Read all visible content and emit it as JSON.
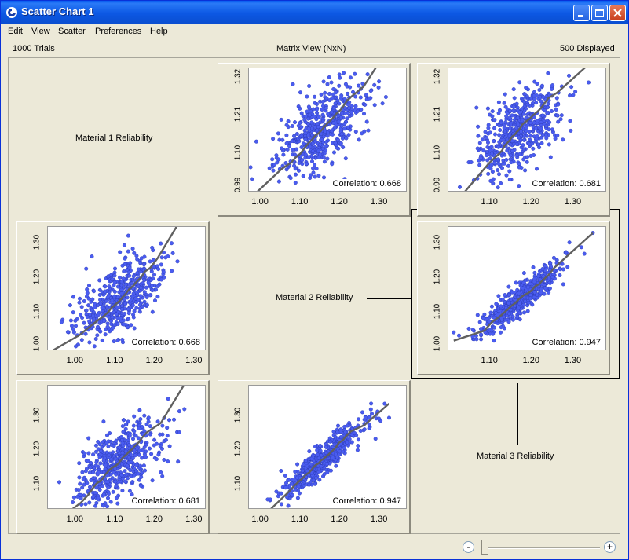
{
  "window": {
    "title": "Scatter Chart 1"
  },
  "menu": [
    "Edit",
    "View",
    "Scatter",
    "Preferences",
    "Help"
  ],
  "info": {
    "trials": "1000 Trials",
    "view": "Matrix View (NxN)",
    "displayed": "500 Displayed"
  },
  "labels": [
    "Material 1 Reliability",
    "Material 2 Reliability",
    "Material 3 Reliability"
  ],
  "colors": {
    "points": "#4a5cf0",
    "fit_line": "#606060",
    "title_bar": "#0a5df0"
  },
  "zoom": {
    "minus": "-",
    "plus": "+",
    "level": 0
  },
  "chart_data": [
    {
      "type": "scatter",
      "row": 1,
      "col": 2,
      "x_var": "Material 2 Reliability",
      "y_var": "Material 1 Reliability",
      "correlation": 0.668,
      "correlation_label": "Correlation: 0.668",
      "xticks": [
        "1.00",
        "1.10",
        "1.20",
        "1.30"
      ],
      "yticks": [
        "0.99",
        "1.10",
        "1.21",
        "1.32"
      ],
      "xlim": [
        0.97,
        1.37
      ],
      "ylim": [
        0.99,
        1.35
      ],
      "n_points": 500,
      "y_center": 1.17,
      "y_spread": 0.055,
      "slope": 0.72
    },
    {
      "type": "scatter",
      "row": 1,
      "col": 3,
      "x_var": "Material 3 Reliability",
      "y_var": "Material 1 Reliability",
      "correlation": 0.681,
      "correlation_label": "Correlation: 0.681",
      "xticks": [
        "1.10",
        "1.20",
        "1.30"
      ],
      "yticks": [
        "0.99",
        "1.10",
        "1.21",
        "1.32"
      ],
      "xlim": [
        1.0,
        1.38
      ],
      "ylim": [
        0.99,
        1.35
      ],
      "n_points": 500,
      "y_center": 1.17,
      "y_spread": 0.055,
      "slope": 0.78
    },
    {
      "type": "scatter",
      "row": 2,
      "col": 1,
      "x_var": "Material 1 Reliability",
      "y_var": "Material 2 Reliability",
      "correlation": 0.668,
      "correlation_label": "Correlation: 0.668",
      "xticks": [
        "1.00",
        "1.10",
        "1.20",
        "1.30"
      ],
      "yticks": [
        "1.00",
        "1.10",
        "1.20",
        "1.30"
      ],
      "xlim": [
        0.93,
        1.33
      ],
      "ylim": [
        0.99,
        1.35
      ],
      "n_points": 500,
      "y_center": 1.14,
      "y_spread": 0.05,
      "slope": 0.62
    },
    {
      "type": "scatter",
      "row": 2,
      "col": 3,
      "x_var": "Material 3 Reliability",
      "y_var": "Material 2 Reliability",
      "correlation": 0.947,
      "correlation_label": "Correlation: 0.947",
      "xticks": [
        "1.10",
        "1.20",
        "1.30"
      ],
      "yticks": [
        "1.00",
        "1.10",
        "1.20",
        "1.30"
      ],
      "xlim": [
        1.0,
        1.38
      ],
      "ylim": [
        0.99,
        1.35
      ],
      "n_points": 500,
      "y_center": 1.14,
      "y_spread": 0.022,
      "slope": 0.92
    },
    {
      "type": "scatter",
      "row": 3,
      "col": 1,
      "x_var": "Material 1 Reliability",
      "y_var": "Material 3 Reliability",
      "correlation": 0.681,
      "correlation_label": "Correlation: 0.681",
      "xticks": [
        "1.00",
        "1.10",
        "1.20",
        "1.30"
      ],
      "yticks": [
        "1.10",
        "1.20",
        "1.30"
      ],
      "xlim": [
        0.93,
        1.33
      ],
      "ylim": [
        1.03,
        1.39
      ],
      "n_points": 500,
      "y_center": 1.17,
      "y_spread": 0.05,
      "slope": 0.7
    },
    {
      "type": "scatter",
      "row": 3,
      "col": 2,
      "x_var": "Material 2 Reliability",
      "y_var": "Material 3 Reliability",
      "correlation": 0.947,
      "correlation_label": "Correlation: 0.947",
      "xticks": [
        "1.00",
        "1.10",
        "1.20",
        "1.30"
      ],
      "yticks": [
        "1.10",
        "1.20",
        "1.30"
      ],
      "xlim": [
        0.97,
        1.37
      ],
      "ylim": [
        1.03,
        1.39
      ],
      "n_points": 500,
      "y_center": 1.17,
      "y_spread": 0.022,
      "slope": 0.95
    }
  ]
}
